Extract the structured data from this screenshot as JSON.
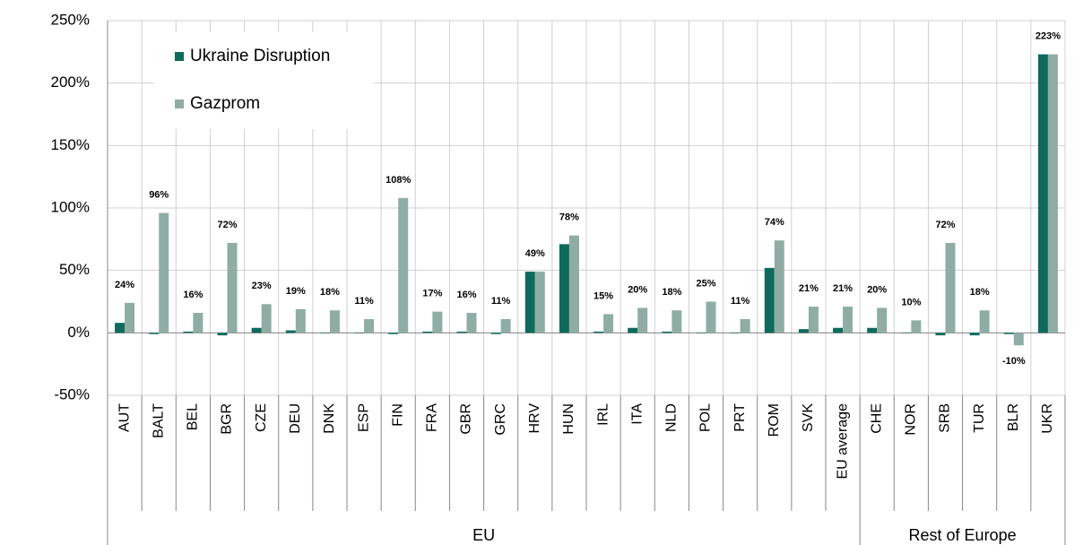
{
  "chart_data": {
    "type": "bar",
    "categories": [
      "AUT",
      "BALT",
      "BEL",
      "BGR",
      "CZE",
      "DEU",
      "DNK",
      "ESP",
      "FIN",
      "FRA",
      "GBR",
      "GRC",
      "HRV",
      "HUN",
      "IRL",
      "ITA",
      "NLD",
      "POL",
      "PRT",
      "ROM",
      "SVK",
      "EU average",
      "CHE",
      "NOR",
      "SRB",
      "TUR",
      "BLR",
      "UKR"
    ],
    "groups": [
      {
        "name": "EU",
        "span": 22
      },
      {
        "name": "Rest of Europe",
        "span": 6
      }
    ],
    "series": [
      {
        "name": "Ukraine Disruption",
        "color": "#0e6b5c",
        "values": [
          8,
          -1,
          1,
          -2,
          4,
          2,
          0,
          0,
          -1,
          1,
          1,
          -1,
          49,
          71,
          1,
          4,
          1,
          0,
          0,
          52,
          3,
          4,
          4,
          0,
          -2,
          -2,
          -1,
          223
        ]
      },
      {
        "name": "Gazprom",
        "color": "#8fada4",
        "values": [
          24,
          96,
          16,
          72,
          23,
          19,
          18,
          11,
          108,
          17,
          16,
          11,
          49,
          78,
          15,
          20,
          18,
          25,
          11,
          74,
          21,
          21,
          20,
          10,
          72,
          18,
          -10,
          223
        ],
        "value_labels": [
          "24%",
          "96%",
          "16%",
          "72%",
          "23%",
          "19%",
          "18%",
          "11%",
          "108%",
          "17%",
          "16%",
          "11%",
          "49%",
          "78%",
          "15%",
          "20%",
          "18%",
          "25%",
          "11%",
          "74%",
          "21%",
          "21%",
          "20%",
          "10%",
          "72%",
          "18%",
          "-10%",
          "223%"
        ]
      }
    ],
    "ylim": [
      -50,
      250
    ],
    "yticks": [
      {
        "value": -50,
        "label": "-50%"
      },
      {
        "value": 0,
        "label": "0%"
      },
      {
        "value": 50,
        "label": "50%"
      },
      {
        "value": 100,
        "label": "100%"
      },
      {
        "value": 150,
        "label": "150%"
      },
      {
        "value": 200,
        "label": "200%"
      },
      {
        "value": 250,
        "label": "250%"
      }
    ],
    "grid": true,
    "legend": "upper left"
  }
}
